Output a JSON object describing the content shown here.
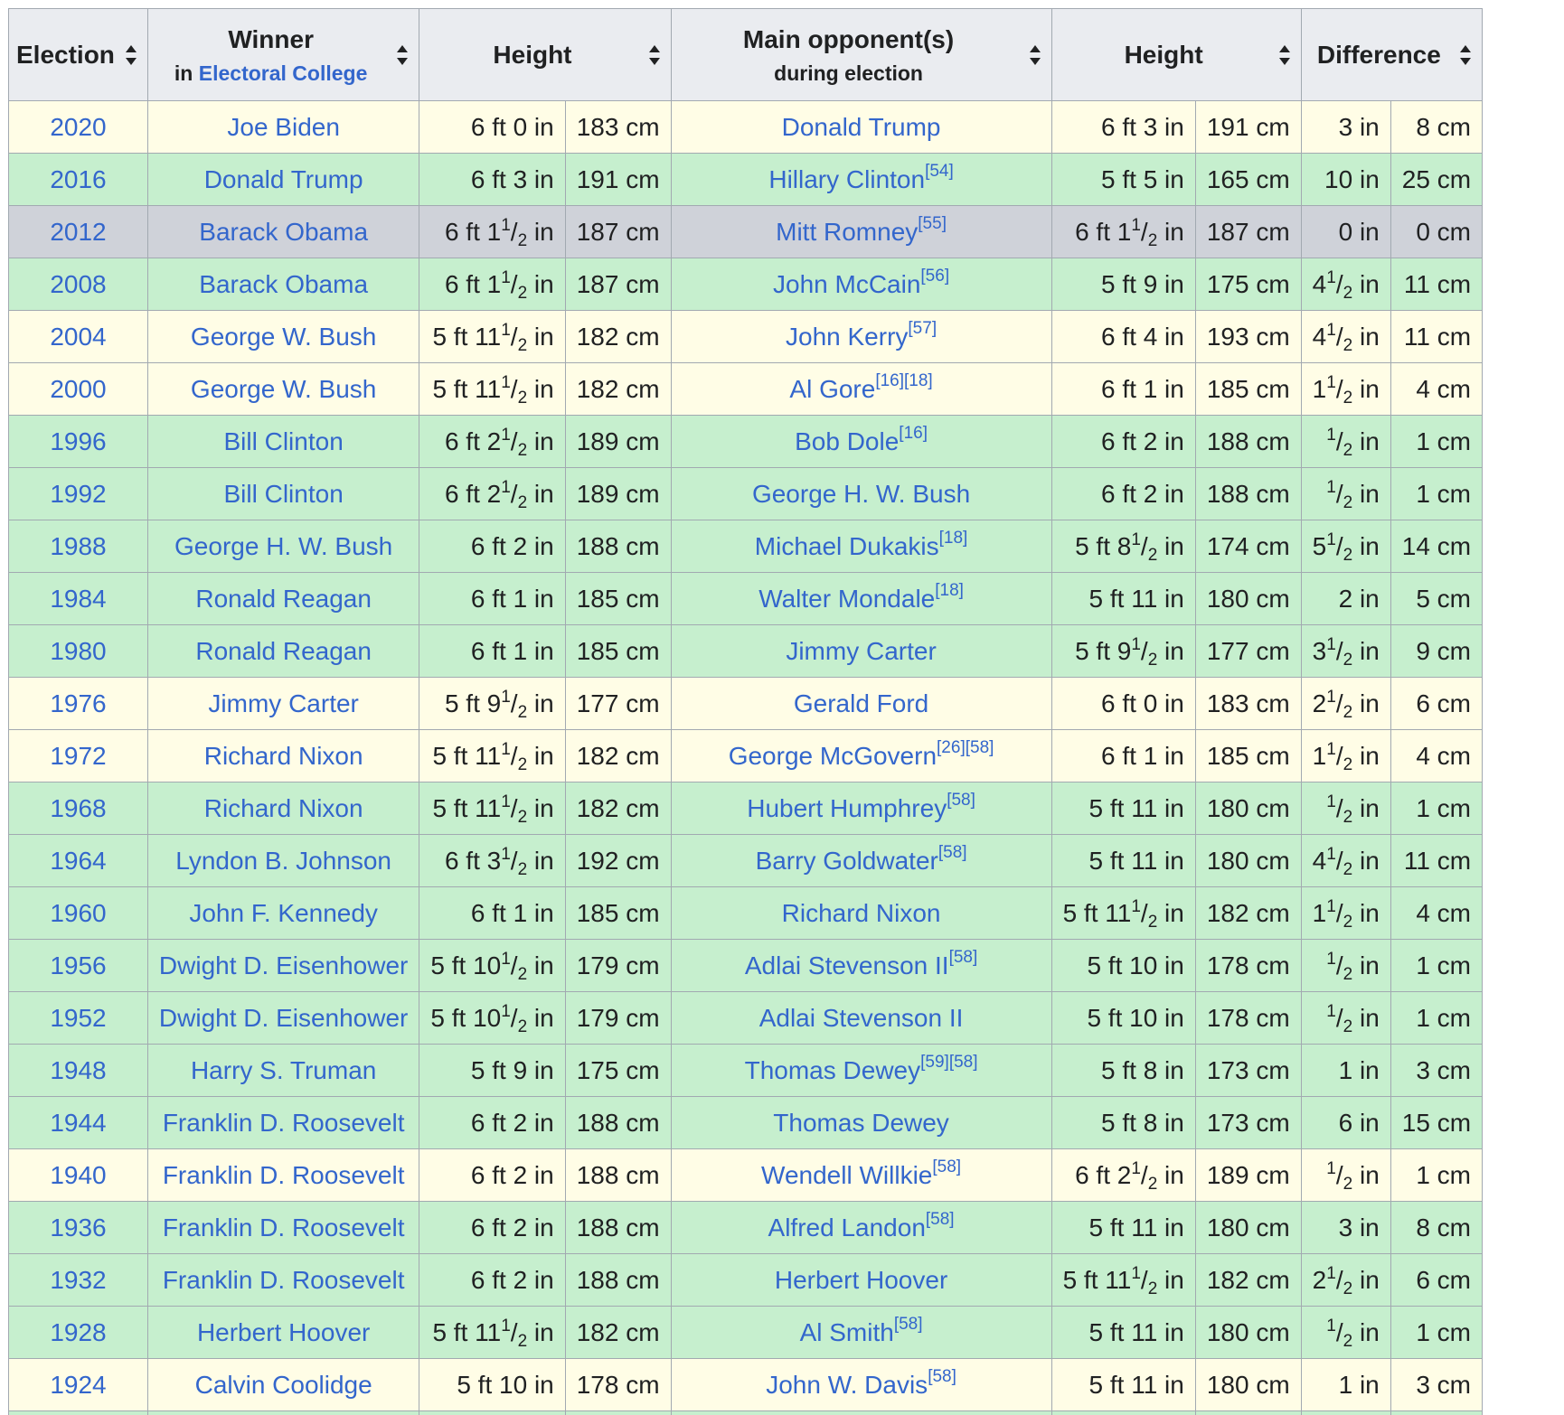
{
  "colors": {
    "header_bg": "#eaecf0",
    "border": "#a2a9b1",
    "link": "#3366cc",
    "row_yellow": "#fffde6",
    "row_green": "#c6efce",
    "row_gray": "#cfd2d9"
  },
  "header": {
    "election": "Election",
    "winner": "Winner",
    "winner_sub_prefix": "in",
    "winner_sub_link": "Electoral College",
    "height": "Height",
    "opponent": "Main opponent(s)",
    "opponent_sub": "during election",
    "height2": "Height",
    "difference": "Difference",
    "sort_icon": "sort-arrows-icon"
  },
  "rows": [
    {
      "color": "yellow",
      "year": "2020",
      "winner": "Joe Biden",
      "wh": {
        "w": "6 ft 0 in"
      },
      "wcm": "183 cm",
      "opp": "Donald Trump",
      "refs": "",
      "oh": {
        "w": "6 ft 3 in"
      },
      "ocm": "191 cm",
      "din": {
        "w": "3 in"
      },
      "dcm": "8 cm"
    },
    {
      "color": "green",
      "year": "2016",
      "winner": "Donald Trump",
      "wh": {
        "w": "6 ft 3 in"
      },
      "wcm": "191 cm",
      "opp": "Hillary Clinton",
      "refs": "[54]",
      "oh": {
        "w": "5 ft 5 in"
      },
      "ocm": "165 cm",
      "din": {
        "w": "10 in"
      },
      "dcm": "25 cm"
    },
    {
      "color": "gray",
      "year": "2012",
      "winner": "Barack Obama",
      "wh": {
        "w": "6 ft 1",
        "f": true
      },
      "wcm": "187 cm",
      "opp": "Mitt Romney",
      "refs": "[55]",
      "oh": {
        "w": "6 ft 1",
        "f": true
      },
      "ocm": "187 cm",
      "din": {
        "w": "0 in"
      },
      "dcm": "0 cm"
    },
    {
      "color": "green",
      "year": "2008",
      "winner": "Barack Obama",
      "wh": {
        "w": "6 ft 1",
        "f": true
      },
      "wcm": "187 cm",
      "opp": "John McCain",
      "refs": "[56]",
      "oh": {
        "w": "5 ft 9 in"
      },
      "ocm": "175 cm",
      "din": {
        "w": "4",
        "f": true
      },
      "dcm": "11 cm"
    },
    {
      "color": "yellow",
      "year": "2004",
      "winner": "George W. Bush",
      "wh": {
        "w": "5 ft 11",
        "f": true
      },
      "wcm": "182 cm",
      "opp": "John Kerry",
      "refs": "[57]",
      "oh": {
        "w": "6 ft 4 in"
      },
      "ocm": "193 cm",
      "din": {
        "w": "4",
        "f": true
      },
      "dcm": "11 cm"
    },
    {
      "color": "yellow",
      "year": "2000",
      "winner": "George W. Bush",
      "wh": {
        "w": "5 ft 11",
        "f": true
      },
      "wcm": "182 cm",
      "opp": "Al Gore",
      "refs": "[16][18]",
      "oh": {
        "w": "6 ft 1 in"
      },
      "ocm": "185 cm",
      "din": {
        "w": "1",
        "f": true
      },
      "dcm": "4 cm"
    },
    {
      "color": "green",
      "year": "1996",
      "winner": "Bill Clinton",
      "wh": {
        "w": "6 ft 2",
        "f": true
      },
      "wcm": "189 cm",
      "opp": "Bob Dole",
      "refs": "[16]",
      "oh": {
        "w": "6 ft 2 in"
      },
      "ocm": "188 cm",
      "din": {
        "w": "",
        "f": true
      },
      "dcm": "1 cm"
    },
    {
      "color": "green",
      "year": "1992",
      "winner": "Bill Clinton",
      "wh": {
        "w": "6 ft 2",
        "f": true
      },
      "wcm": "189 cm",
      "opp": "George H. W. Bush",
      "refs": "",
      "oh": {
        "w": "6 ft 2 in"
      },
      "ocm": "188 cm",
      "din": {
        "w": "",
        "f": true
      },
      "dcm": "1 cm"
    },
    {
      "color": "green",
      "year": "1988",
      "winner": "George H. W. Bush",
      "wh": {
        "w": "6 ft 2 in"
      },
      "wcm": "188 cm",
      "opp": "Michael Dukakis",
      "refs": "[18]",
      "oh": {
        "w": "5 ft 8",
        "f": true
      },
      "ocm": "174 cm",
      "din": {
        "w": "5",
        "f": true
      },
      "dcm": "14 cm"
    },
    {
      "color": "green",
      "year": "1984",
      "winner": "Ronald Reagan",
      "wh": {
        "w": "6 ft 1 in"
      },
      "wcm": "185 cm",
      "opp": "Walter Mondale",
      "refs": "[18]",
      "oh": {
        "w": "5 ft 11 in"
      },
      "ocm": "180 cm",
      "din": {
        "w": "2 in"
      },
      "dcm": "5 cm"
    },
    {
      "color": "green",
      "year": "1980",
      "winner": "Ronald Reagan",
      "wh": {
        "w": "6 ft 1 in"
      },
      "wcm": "185 cm",
      "opp": "Jimmy Carter",
      "refs": "",
      "oh": {
        "w": "5 ft 9",
        "f": true
      },
      "ocm": "177 cm",
      "din": {
        "w": "3",
        "f": true
      },
      "dcm": "9 cm"
    },
    {
      "color": "yellow",
      "year": "1976",
      "winner": "Jimmy Carter",
      "wh": {
        "w": "5 ft 9",
        "f": true
      },
      "wcm": "177 cm",
      "opp": "Gerald Ford",
      "refs": "",
      "oh": {
        "w": "6 ft 0 in"
      },
      "ocm": "183 cm",
      "din": {
        "w": "2",
        "f": true
      },
      "dcm": "6 cm"
    },
    {
      "color": "yellow",
      "year": "1972",
      "winner": "Richard Nixon",
      "wh": {
        "w": "5 ft 11",
        "f": true
      },
      "wcm": "182 cm",
      "opp": "George McGovern",
      "refs": "[26][58]",
      "oh": {
        "w": "6 ft 1 in"
      },
      "ocm": "185 cm",
      "din": {
        "w": "1",
        "f": true
      },
      "dcm": "4 cm"
    },
    {
      "color": "green",
      "year": "1968",
      "winner": "Richard Nixon",
      "wh": {
        "w": "5 ft 11",
        "f": true
      },
      "wcm": "182 cm",
      "opp": "Hubert Humphrey",
      "refs": "[58]",
      "oh": {
        "w": "5 ft 11 in"
      },
      "ocm": "180 cm",
      "din": {
        "w": "",
        "f": true
      },
      "dcm": "1 cm"
    },
    {
      "color": "green",
      "year": "1964",
      "winner": "Lyndon B. Johnson",
      "wh": {
        "w": "6 ft 3",
        "f": true
      },
      "wcm": "192 cm",
      "opp": "Barry Goldwater",
      "refs": "[58]",
      "oh": {
        "w": "5 ft 11 in"
      },
      "ocm": "180 cm",
      "din": {
        "w": "4",
        "f": true
      },
      "dcm": "11 cm"
    },
    {
      "color": "green",
      "year": "1960",
      "winner": "John F. Kennedy",
      "wh": {
        "w": "6 ft 1 in"
      },
      "wcm": "185 cm",
      "opp": "Richard Nixon",
      "refs": "",
      "oh": {
        "w": "5 ft 11",
        "f": true
      },
      "ocm": "182 cm",
      "din": {
        "w": "1",
        "f": true
      },
      "dcm": "4 cm"
    },
    {
      "color": "green",
      "year": "1956",
      "winner": "Dwight D. Eisenhower",
      "wh": {
        "w": "5 ft 10",
        "f": true
      },
      "wcm": "179 cm",
      "opp": "Adlai Stevenson II",
      "refs": "[58]",
      "oh": {
        "w": "5 ft 10 in"
      },
      "ocm": "178 cm",
      "din": {
        "w": "",
        "f": true
      },
      "dcm": "1 cm"
    },
    {
      "color": "green",
      "year": "1952",
      "winner": "Dwight D. Eisenhower",
      "wh": {
        "w": "5 ft 10",
        "f": true
      },
      "wcm": "179 cm",
      "opp": "Adlai Stevenson II",
      "refs": "",
      "oh": {
        "w": "5 ft 10 in"
      },
      "ocm": "178 cm",
      "din": {
        "w": "",
        "f": true
      },
      "dcm": "1 cm"
    },
    {
      "color": "green",
      "year": "1948",
      "winner": "Harry S. Truman",
      "wh": {
        "w": "5 ft 9 in"
      },
      "wcm": "175 cm",
      "opp": "Thomas Dewey",
      "refs": "[59][58]",
      "oh": {
        "w": "5 ft 8 in"
      },
      "ocm": "173 cm",
      "din": {
        "w": "1 in"
      },
      "dcm": "3 cm"
    },
    {
      "color": "green",
      "year": "1944",
      "winner": "Franklin D. Roosevelt",
      "wh": {
        "w": "6 ft 2 in"
      },
      "wcm": "188 cm",
      "opp": "Thomas Dewey",
      "refs": "",
      "oh": {
        "w": "5 ft 8 in"
      },
      "ocm": "173 cm",
      "din": {
        "w": "6 in"
      },
      "dcm": "15 cm"
    },
    {
      "color": "yellow",
      "year": "1940",
      "winner": "Franklin D. Roosevelt",
      "wh": {
        "w": "6 ft 2 in"
      },
      "wcm": "188 cm",
      "opp": "Wendell Willkie",
      "refs": "[58]",
      "oh": {
        "w": "6 ft 2",
        "f": true
      },
      "ocm": "189 cm",
      "din": {
        "w": "",
        "f": true
      },
      "dcm": "1 cm"
    },
    {
      "color": "green",
      "year": "1936",
      "winner": "Franklin D. Roosevelt",
      "wh": {
        "w": "6 ft 2 in"
      },
      "wcm": "188 cm",
      "opp": "Alfred Landon",
      "refs": "[58]",
      "oh": {
        "w": "5 ft 11 in"
      },
      "ocm": "180 cm",
      "din": {
        "w": "3 in"
      },
      "dcm": "8 cm"
    },
    {
      "color": "green",
      "year": "1932",
      "winner": "Franklin D. Roosevelt",
      "wh": {
        "w": "6 ft 2 in"
      },
      "wcm": "188 cm",
      "opp": "Herbert Hoover",
      "refs": "",
      "oh": {
        "w": "5 ft 11",
        "f": true
      },
      "ocm": "182 cm",
      "din": {
        "w": "2",
        "f": true
      },
      "dcm": "6 cm"
    },
    {
      "color": "green",
      "year": "1928",
      "winner": "Herbert Hoover",
      "wh": {
        "w": "5 ft 11",
        "f": true
      },
      "wcm": "182 cm",
      "opp": "Al Smith",
      "refs": "[58]",
      "oh": {
        "w": "5 ft 11 in"
      },
      "ocm": "180 cm",
      "din": {
        "w": "",
        "f": true
      },
      "dcm": "1 cm"
    },
    {
      "color": "yellow",
      "year": "1924",
      "winner": "Calvin Coolidge",
      "wh": {
        "w": "5 ft 10 in"
      },
      "wcm": "178 cm",
      "opp": "John W. Davis",
      "refs": "[58]",
      "oh": {
        "w": "5 ft 11 in"
      },
      "ocm": "180 cm",
      "din": {
        "w": "1 in"
      },
      "dcm": "3 cm"
    }
  ],
  "fraction": {
    "num": "1",
    "slash": "/",
    "den": "2",
    "unit": " in"
  }
}
